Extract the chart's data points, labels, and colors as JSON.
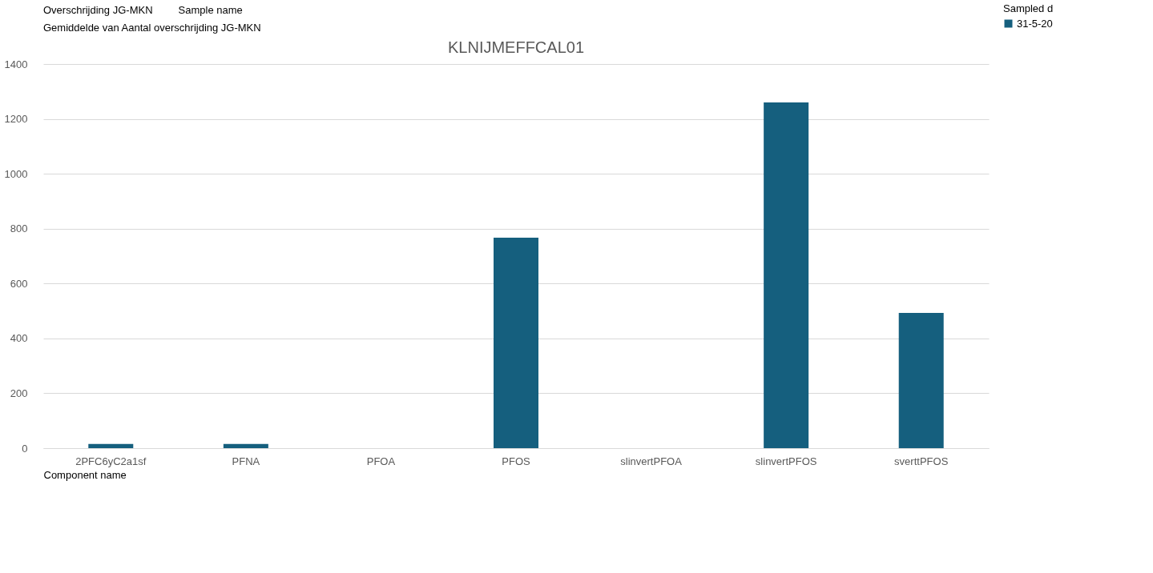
{
  "chart_data": {
    "type": "bar",
    "title": "KLNIJMEFFCAL01",
    "xlabel": "Component name",
    "legend_title": "Sampled d",
    "annotations": [
      "Overschrijding JG-MKN",
      "Sample name",
      "Gemiddelde van Aantal overschrijding JG-MKN"
    ],
    "categories": [
      "2PFC6yC2a1sf",
      "PFNA",
      "PFOA",
      "PFOS",
      "slinvertPFOA",
      "slinvertPFOS",
      "sverttPFOS"
    ],
    "series": [
      {
        "name": "31-5-20",
        "color": "#155f7e",
        "values": [
          15,
          15,
          null,
          767,
          null,
          1260,
          493
        ]
      }
    ],
    "ylim": [
      0,
      1400
    ],
    "yticks": [
      0,
      200,
      400,
      600,
      800,
      1000,
      1200,
      1400
    ],
    "grid": "y",
    "legend": "right"
  }
}
